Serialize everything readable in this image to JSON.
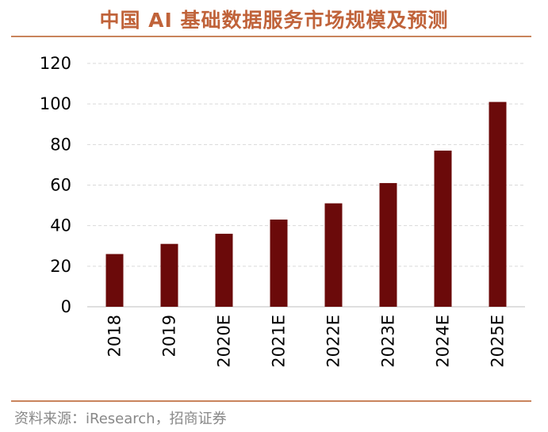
{
  "page": {
    "title": "中国 AI 基础数据服务市场规模及预测",
    "source": "资料来源：iResearch，招商证券"
  },
  "colors": {
    "bar": "#6b0a0a",
    "title": "#c0633a",
    "rule": "#c9845c",
    "grid": "#d9d9d9",
    "text": "#000000",
    "source": "#888888"
  },
  "chart_data": {
    "type": "bar",
    "title": "中国 AI 基础数据服务市场规模及预测",
    "xlabel": "",
    "ylabel": "",
    "categories": [
      "2018",
      "2019",
      "2020E",
      "2021E",
      "2022E",
      "2023E",
      "2024E",
      "2025E"
    ],
    "values": [
      26,
      31,
      36,
      43,
      51,
      61,
      77,
      101
    ],
    "ylim": [
      0,
      120
    ],
    "yticks": [
      "0",
      "20",
      "40",
      "60",
      "80",
      "100",
      "120"
    ],
    "grid": true,
    "legend": "none"
  }
}
